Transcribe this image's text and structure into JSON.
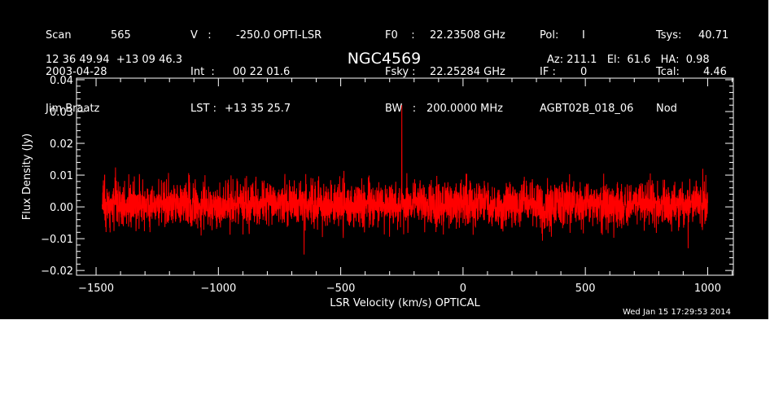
{
  "header": {
    "col1": [
      {
        "key": "Scan",
        "value": "565"
      },
      {
        "key": "2003-04-28",
        "value": ""
      },
      {
        "key": "Jim Braatz",
        "value": ""
      }
    ],
    "col2": [
      {
        "key": "V   :",
        "value": "-250.0 OPTI-LSR"
      },
      {
        "key": "Int  :",
        "value": "00 22 01.6"
      },
      {
        "key": "LST :",
        "value": "+13 35 25.7"
      }
    ],
    "col3": [
      {
        "key": "F0    :",
        "value": "22.23508 GHz"
      },
      {
        "key": "Fsky :",
        "value": "22.25284 GHz"
      },
      {
        "key": "BW   :",
        "value": "200.0000 MHz"
      }
    ],
    "col4": [
      {
        "key": "Pol:",
        "value": "I"
      },
      {
        "key": "IF :",
        "value": "0"
      },
      {
        "key": "AGBT02B_018_06",
        "value": ""
      }
    ],
    "col5": [
      {
        "key": "Tsys:",
        "value": "40.71"
      },
      {
        "key": "Tcal:",
        "value": "4.46"
      },
      {
        "key": "Nod",
        "value": ""
      }
    ],
    "coords": "12 36 49.94  +13 09 46.3",
    "pointing": "Az: 211.1   El:  61.6   HA:  0.98"
  },
  "timestamp": "Wed Jan 15 17:29:53 2014",
  "colors": {
    "background": "#000000",
    "axes": "#ffffff",
    "trace": "#ff0000"
  },
  "chart_data": {
    "type": "line",
    "title": "NGC4569",
    "xlabel": "LSR Velocity (km/s) OPTICAL",
    "ylabel": "Flux Density (Jy)",
    "xlim": [
      -1580,
      1105
    ],
    "ylim": [
      -0.0215,
      0.0405
    ],
    "xticks": [
      -1500,
      -1000,
      -500,
      0,
      500,
      1000
    ],
    "xtick_labels": [
      "−1500",
      "−1000",
      "−500",
      "0",
      "500",
      "1000"
    ],
    "yticks": [
      -0.02,
      -0.01,
      0.0,
      0.01,
      0.02,
      0.03,
      0.04
    ],
    "ytick_labels": [
      "−0.02",
      "−0.01",
      "0.00",
      "0.01",
      "0.02",
      "0.03",
      "0.04"
    ],
    "grid": false,
    "series": [
      {
        "x_start": -1475,
        "x_end": 1000,
        "noise_rms": 0.0035,
        "baseline": 0.0008,
        "features": [
          {
            "x": -250,
            "y": 0.032
          },
          {
            "x": -650,
            "y": -0.015
          },
          {
            "x": 980,
            "y": 0.012
          },
          {
            "x": 920,
            "y": -0.013
          },
          {
            "x": -1465,
            "y": 0.01
          }
        ]
      }
    ]
  }
}
